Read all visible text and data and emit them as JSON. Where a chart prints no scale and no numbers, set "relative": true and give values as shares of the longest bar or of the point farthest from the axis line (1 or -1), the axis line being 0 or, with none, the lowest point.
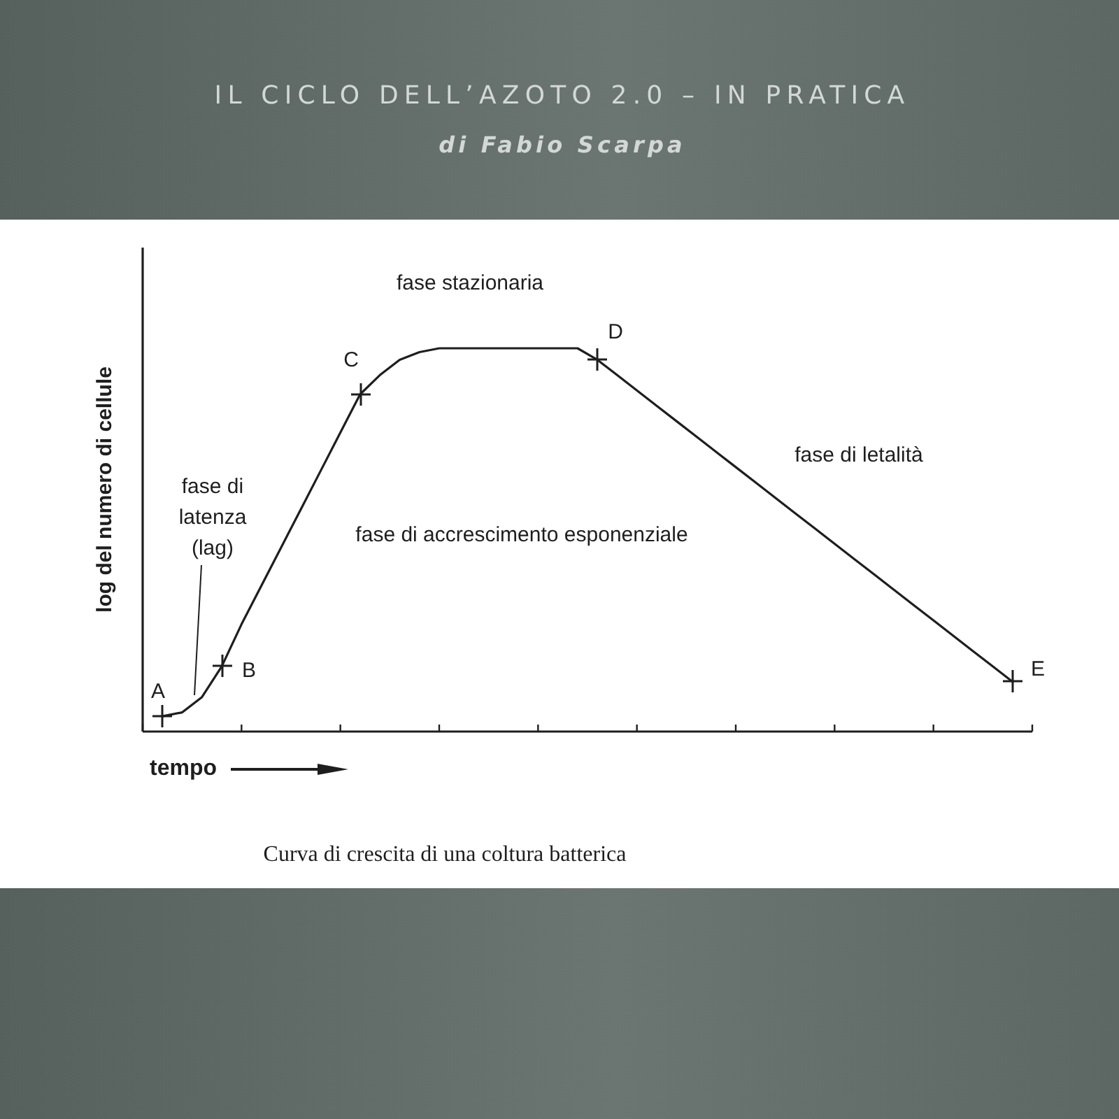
{
  "chart_data": {
    "type": "line",
    "title": "IL CICLO DELL’AZOTO 2.0 – IN PRATICA",
    "subtitle": "di Fabio Scarpa",
    "xlabel": "tempo",
    "ylabel": "log del numero di cellule",
    "relative": true,
    "categories": [
      null,
      null,
      null,
      null,
      null,
      null,
      null,
      null,
      null,
      null,
      null,
      null,
      null,
      null,
      null,
      null,
      null,
      null,
      null,
      null,
      null,
      null,
      null,
      null,
      null,
      null,
      null,
      null,
      null,
      null,
      null,
      null,
      null,
      null,
      null,
      null,
      null,
      null,
      null,
      null,
      null,
      null,
      null,
      null,
      null,
      null
    ],
    "series": [
      {
        "color": "#1e1e1e",
        "line_style": "solid",
        "values": [
          null,
          0.04,
          0.05,
          0.09,
          0.17,
          0.28,
          0.38,
          0.48,
          0.58,
          0.68,
          0.78,
          0.88,
          0.93,
          0.97,
          0.99,
          1,
          1,
          1,
          1,
          1,
          1,
          1,
          1,
          0.97,
          0.93,
          0.89,
          0.85,
          0.81,
          0.77,
          0.73,
          0.69,
          0.65,
          0.61,
          0.57,
          0.53,
          0.49,
          0.45,
          0.41,
          0.37,
          0.33,
          0.29,
          0.25,
          0.21,
          0.17,
          0.13,
          null
        ]
      }
    ],
    "annotations": [
      "fase stazionaria",
      "fase di latenza (lag)",
      "fase di accrescimento esponenziale",
      "fase di letalità",
      "Curva di crescita di una coltura batterica",
      "A",
      "B",
      "C",
      "D",
      "E"
    ]
  }
}
